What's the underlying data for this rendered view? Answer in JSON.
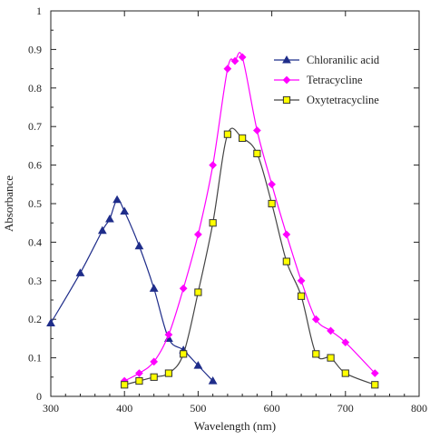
{
  "chart_data": {
    "type": "line",
    "xlabel": "Wavelength (nm)",
    "ylabel": "Absorbance",
    "xlim": [
      300,
      800
    ],
    "ylim": [
      0,
      1
    ],
    "xticks": [
      "300",
      "400",
      "500",
      "600",
      "700",
      "800"
    ],
    "yticks": [
      "0",
      "0.1",
      "0.2",
      "0.3",
      "0.4",
      "0.5",
      "0.6",
      "0.7",
      "0.8",
      "0.9",
      "1"
    ],
    "grid": false,
    "legend": "top-right",
    "series": [
      {
        "name": "Chloranilic acid",
        "color": "#1f2d8a",
        "marker": "triangle",
        "x": [
          300,
          340,
          370,
          380,
          390,
          400,
          420,
          440,
          460,
          480,
          500,
          520
        ],
        "y": [
          0.19,
          0.32,
          0.43,
          0.46,
          0.51,
          0.48,
          0.39,
          0.28,
          0.15,
          0.12,
          0.08,
          0.04
        ]
      },
      {
        "name": "Tetracycline",
        "color": "#ff00ff",
        "marker": "diamond",
        "x": [
          400,
          420,
          440,
          460,
          480,
          500,
          520,
          540,
          550,
          560,
          580,
          600,
          620,
          640,
          660,
          680,
          700,
          740
        ],
        "y": [
          0.04,
          0.06,
          0.09,
          0.16,
          0.28,
          0.42,
          0.6,
          0.85,
          0.87,
          0.88,
          0.69,
          0.55,
          0.42,
          0.3,
          0.2,
          0.17,
          0.14,
          0.06
        ]
      },
      {
        "name": "Oxytetracycline",
        "color": "#444444",
        "marker_fill": "#ffff00",
        "marker": "square",
        "x": [
          400,
          420,
          440,
          460,
          480,
          500,
          520,
          540,
          560,
          580,
          600,
          620,
          640,
          660,
          680,
          700,
          740
        ],
        "y": [
          0.03,
          0.04,
          0.05,
          0.06,
          0.11,
          0.27,
          0.45,
          0.68,
          0.67,
          0.63,
          0.5,
          0.35,
          0.26,
          0.11,
          0.1,
          0.06,
          0.03
        ]
      }
    ]
  }
}
